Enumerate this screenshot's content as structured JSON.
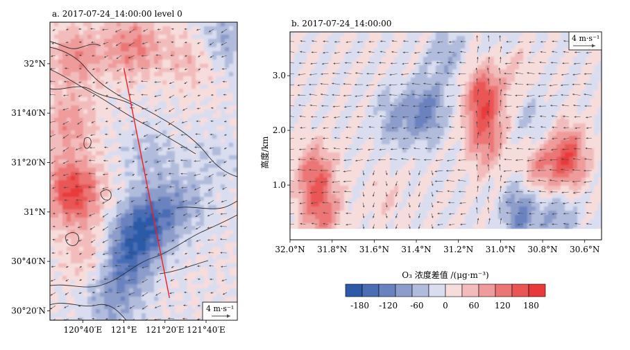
{
  "colors": {
    "palette": [
      "#2c5aa8",
      "#4a6db5",
      "#6a83c0",
      "#8c9ccb",
      "#b1bbdc",
      "#d9ddef",
      "#f7dcdc",
      "#f3bcbc",
      "#ef9b9b",
      "#ec7676",
      "#ea5656",
      "#e83a3a"
    ],
    "map_stroke": "#2d2d2d",
    "section_line": "#ff1a1a",
    "vector": "#4a4a4a"
  },
  "chart_data": [
    {
      "type": "heatmap",
      "title": "a. 2017-07-24_14:00:00 level 0",
      "xlabel": "",
      "ylabel": "",
      "x_ticks": [
        "120°40′E",
        "121°E",
        "121°20′E",
        "121°40′E"
      ],
      "y_ticks": [
        "32°N",
        "31°40′N",
        "31°20′N",
        "31°N",
        "30°40′N",
        "30°20′N"
      ],
      "x_range": [
        120.4,
        121.92
      ],
      "y_range": [
        30.27,
        32.28
      ],
      "cross_section": {
        "start": [
          121.0,
          31.97
        ],
        "end": [
          121.37,
          30.42
        ]
      },
      "vector_key": "4 m·s⁻¹",
      "fields": {
        "positive": [
          [
            121.08,
            32.12,
            0.55
          ],
          [
            120.62,
            32.05,
            0.48
          ],
          [
            120.55,
            31.6,
            0.42
          ],
          [
            120.58,
            31.2,
            0.45
          ],
          [
            120.6,
            31.08,
            0.5
          ],
          [
            121.55,
            32.03,
            0.3
          ],
          [
            120.75,
            30.7,
            0.35
          ]
        ],
        "negative": [
          [
            121.2,
            30.95,
            -0.55
          ],
          [
            121.08,
            30.78,
            -0.6
          ],
          [
            120.95,
            30.6,
            -0.45
          ],
          [
            121.45,
            31.05,
            -0.35
          ],
          [
            121.2,
            31.38,
            -0.25
          ],
          [
            121.8,
            32.15,
            -0.35
          ],
          [
            120.9,
            30.35,
            -0.3
          ],
          [
            121.75,
            31.35,
            -0.15
          ]
        ]
      }
    },
    {
      "type": "heatmap",
      "title": "b. 2017-07-24_14:00:00",
      "xlabel": "",
      "ylabel": "高度/km",
      "x_ticks": [
        "32.0°N",
        "31.8°N",
        "31.6°N",
        "31.4°N",
        "31.2°N",
        "31.0°N",
        "30.8°N",
        "30.6°N"
      ],
      "y_ticks": [
        "1.0",
        "2.0",
        "3.0"
      ],
      "x_range": [
        32.0,
        30.52
      ],
      "y_range": [
        0.0,
        3.8
      ],
      "ground_level_km": 0.2,
      "vector_key": "4 m·s⁻¹",
      "fields": {
        "positive": [
          [
            31.88,
            1.2,
            0.6
          ],
          [
            31.85,
            0.5,
            0.55
          ],
          [
            31.08,
            2.6,
            0.8
          ],
          [
            31.07,
            1.8,
            0.5
          ],
          [
            30.68,
            1.5,
            0.8
          ],
          [
            30.82,
            1.3,
            0.45
          ],
          [
            31.55,
            0.8,
            0.15
          ],
          [
            30.95,
            3.3,
            0.3
          ]
        ],
        "negative": [
          [
            31.35,
            2.35,
            -0.55
          ],
          [
            31.5,
            2.2,
            -0.35
          ],
          [
            30.9,
            0.5,
            -0.55
          ],
          [
            30.72,
            0.4,
            -0.35
          ],
          [
            30.98,
            3.55,
            -0.25
          ],
          [
            31.25,
            3.35,
            -0.3
          ],
          [
            30.84,
            2.1,
            -0.25
          ]
        ]
      }
    }
  ],
  "colorbar": {
    "label": "O₃ 浓度差值 /(μg·m⁻³)",
    "ticks": [
      "-180",
      "-120",
      "-60",
      "0",
      "60",
      "120",
      "180"
    ]
  }
}
